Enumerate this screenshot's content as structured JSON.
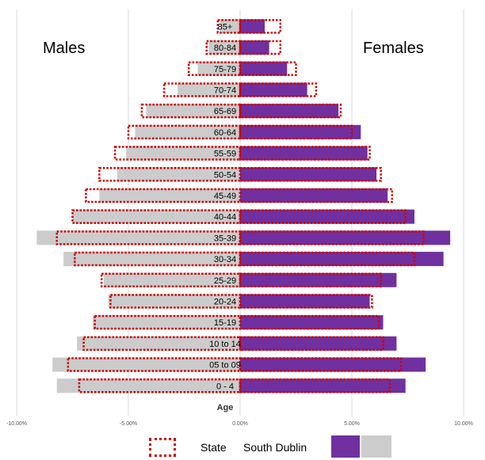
{
  "chart_data": {
    "type": "bar",
    "orientation": "horizontal",
    "layout": "population-pyramid",
    "left_title": "Males",
    "right_title": "Females",
    "center_axis_label": "Age",
    "categories": [
      "85+",
      "80-84",
      "75-79",
      "70-74",
      "65-69",
      "60-64",
      "55-59",
      "50-54",
      "45-49",
      "40-44",
      "35-39",
      "30-34",
      "25-29",
      "20-24",
      "15-19",
      "10 to 14",
      "05 to 09",
      "0 - 4"
    ],
    "series": [
      {
        "name": "South Dublin",
        "side": "males",
        "color": "#cccccc",
        "values": [
          0.9,
          1.4,
          1.9,
          2.8,
          4.2,
          4.7,
          5.1,
          5.5,
          6.3,
          7.5,
          9.1,
          7.9,
          6.1,
          5.9,
          6.6,
          7.3,
          8.4,
          8.2
        ]
      },
      {
        "name": "South Dublin",
        "side": "females",
        "color": "#7030a0",
        "values": [
          1.1,
          1.3,
          2.1,
          3.0,
          4.4,
          5.4,
          5.7,
          6.1,
          6.6,
          7.8,
          9.4,
          9.1,
          7.0,
          5.8,
          6.4,
          7.0,
          8.3,
          7.4
        ]
      },
      {
        "name": "State",
        "side": "males",
        "style": "dotted-outline",
        "color": "#cc0000",
        "values": [
          1.0,
          1.5,
          2.3,
          3.4,
          4.4,
          5.0,
          5.6,
          6.3,
          6.9,
          7.5,
          8.2,
          7.4,
          6.2,
          5.8,
          6.5,
          7.0,
          7.7,
          7.2
        ]
      },
      {
        "name": "State",
        "side": "females",
        "style": "dotted-outline",
        "color": "#cc0000",
        "values": [
          1.8,
          1.8,
          2.5,
          3.4,
          4.5,
          5.0,
          5.8,
          6.3,
          6.8,
          7.4,
          8.2,
          7.8,
          6.3,
          5.9,
          6.2,
          6.4,
          7.2,
          6.7
        ]
      }
    ],
    "x_ticks": [
      "-10.00%",
      "-5.00%",
      "0.00%",
      "5.00%",
      "10.00%"
    ],
    "xlim": [
      -10,
      10
    ],
    "unit": "%",
    "grid": "vertical",
    "legend": {
      "position": "bottom",
      "state_label": "State",
      "south_dublin_label": "South Dublin"
    },
    "colors": {
      "males": "#cccccc",
      "females": "#7030a0",
      "state_outline": "#cc0000",
      "grid": "#d9d9d9",
      "tick_text": "#595959"
    }
  }
}
